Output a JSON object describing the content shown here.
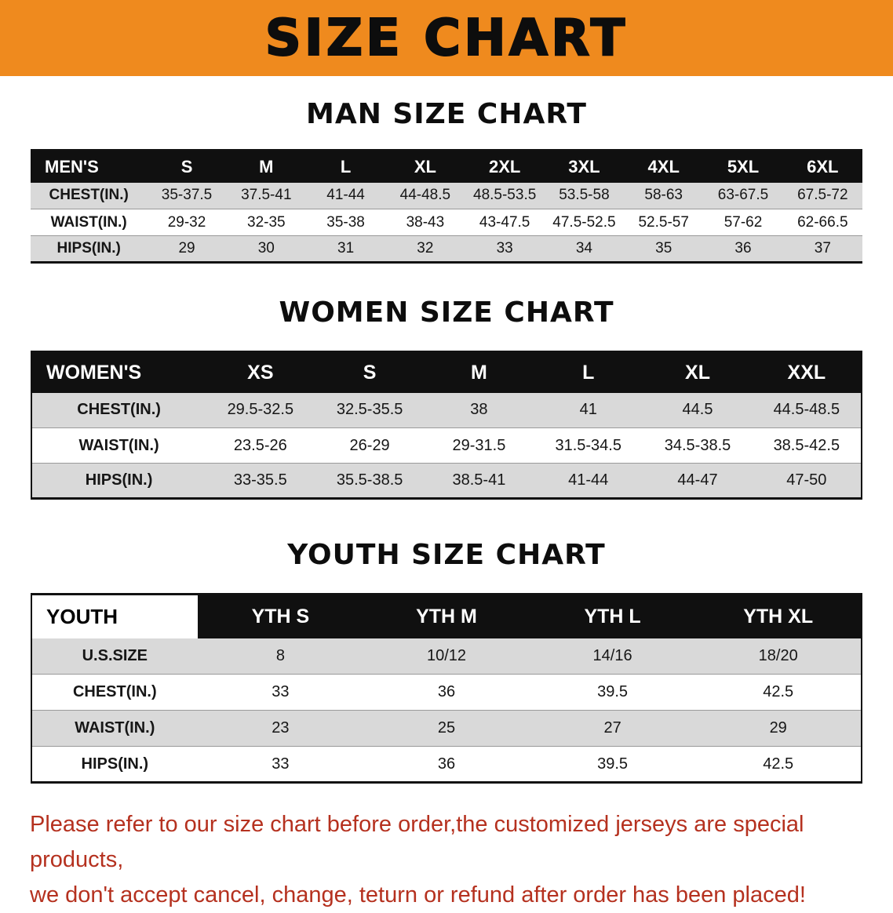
{
  "banner": {
    "title": "SIZE CHART",
    "bg_color": "#ef8a1e"
  },
  "sections": {
    "men": {
      "heading": "MAN SIZE CHART",
      "table": {
        "header": [
          "MEN'S",
          "S",
          "M",
          "L",
          "XL",
          "2XL",
          "3XL",
          "4XL",
          "5XL",
          "6XL"
        ],
        "rows": [
          [
            "CHEST(IN.)",
            "35-37.5",
            "37.5-41",
            "41-44",
            "44-48.5",
            "48.5-53.5",
            "53.5-58",
            "58-63",
            "63-67.5",
            "67.5-72"
          ],
          [
            "WAIST(IN.)",
            "29-32",
            "32-35",
            "35-38",
            "38-43",
            "43-47.5",
            "47.5-52.5",
            "52.5-57",
            "57-62",
            "62-66.5"
          ],
          [
            "HIPS(IN.)",
            "29",
            "30",
            "31",
            "32",
            "33",
            "34",
            "35",
            "36",
            "37"
          ]
        ]
      }
    },
    "women": {
      "heading": "WOMEN SIZE CHART",
      "table": {
        "header": [
          "WOMEN'S",
          "XS",
          "S",
          "M",
          "L",
          "XL",
          "XXL"
        ],
        "rows": [
          [
            "CHEST(IN.)",
            "29.5-32.5",
            "32.5-35.5",
            "38",
            "41",
            "44.5",
            "44.5-48.5"
          ],
          [
            "WAIST(IN.)",
            "23.5-26",
            "26-29",
            "29-31.5",
            "31.5-34.5",
            "34.5-38.5",
            "38.5-42.5"
          ],
          [
            "HIPS(IN.)",
            "33-35.5",
            "35.5-38.5",
            "38.5-41",
            "41-44",
            "44-47",
            "47-50"
          ]
        ]
      }
    },
    "youth": {
      "heading": "YOUTH SIZE CHART",
      "table": {
        "header": [
          "YOUTH",
          "YTH S",
          "YTH M",
          "YTH L",
          "YTH XL"
        ],
        "rows": [
          [
            "U.S.SIZE",
            "8",
            "10/12",
            "14/16",
            "18/20"
          ],
          [
            "CHEST(IN.)",
            "33",
            "36",
            "39.5",
            "42.5"
          ],
          [
            "WAIST(IN.)",
            "23",
            "25",
            "27",
            "29"
          ],
          [
            "HIPS(IN.)",
            "33",
            "36",
            "39.5",
            "42.5"
          ]
        ]
      }
    }
  },
  "footer": {
    "line1": "Please refer to our size chart before order,the customized jerseys are special products,",
    "line2": "we don't accept cancel, change, teturn or refund after order has been placed!",
    "text_color": "#b5311f"
  }
}
